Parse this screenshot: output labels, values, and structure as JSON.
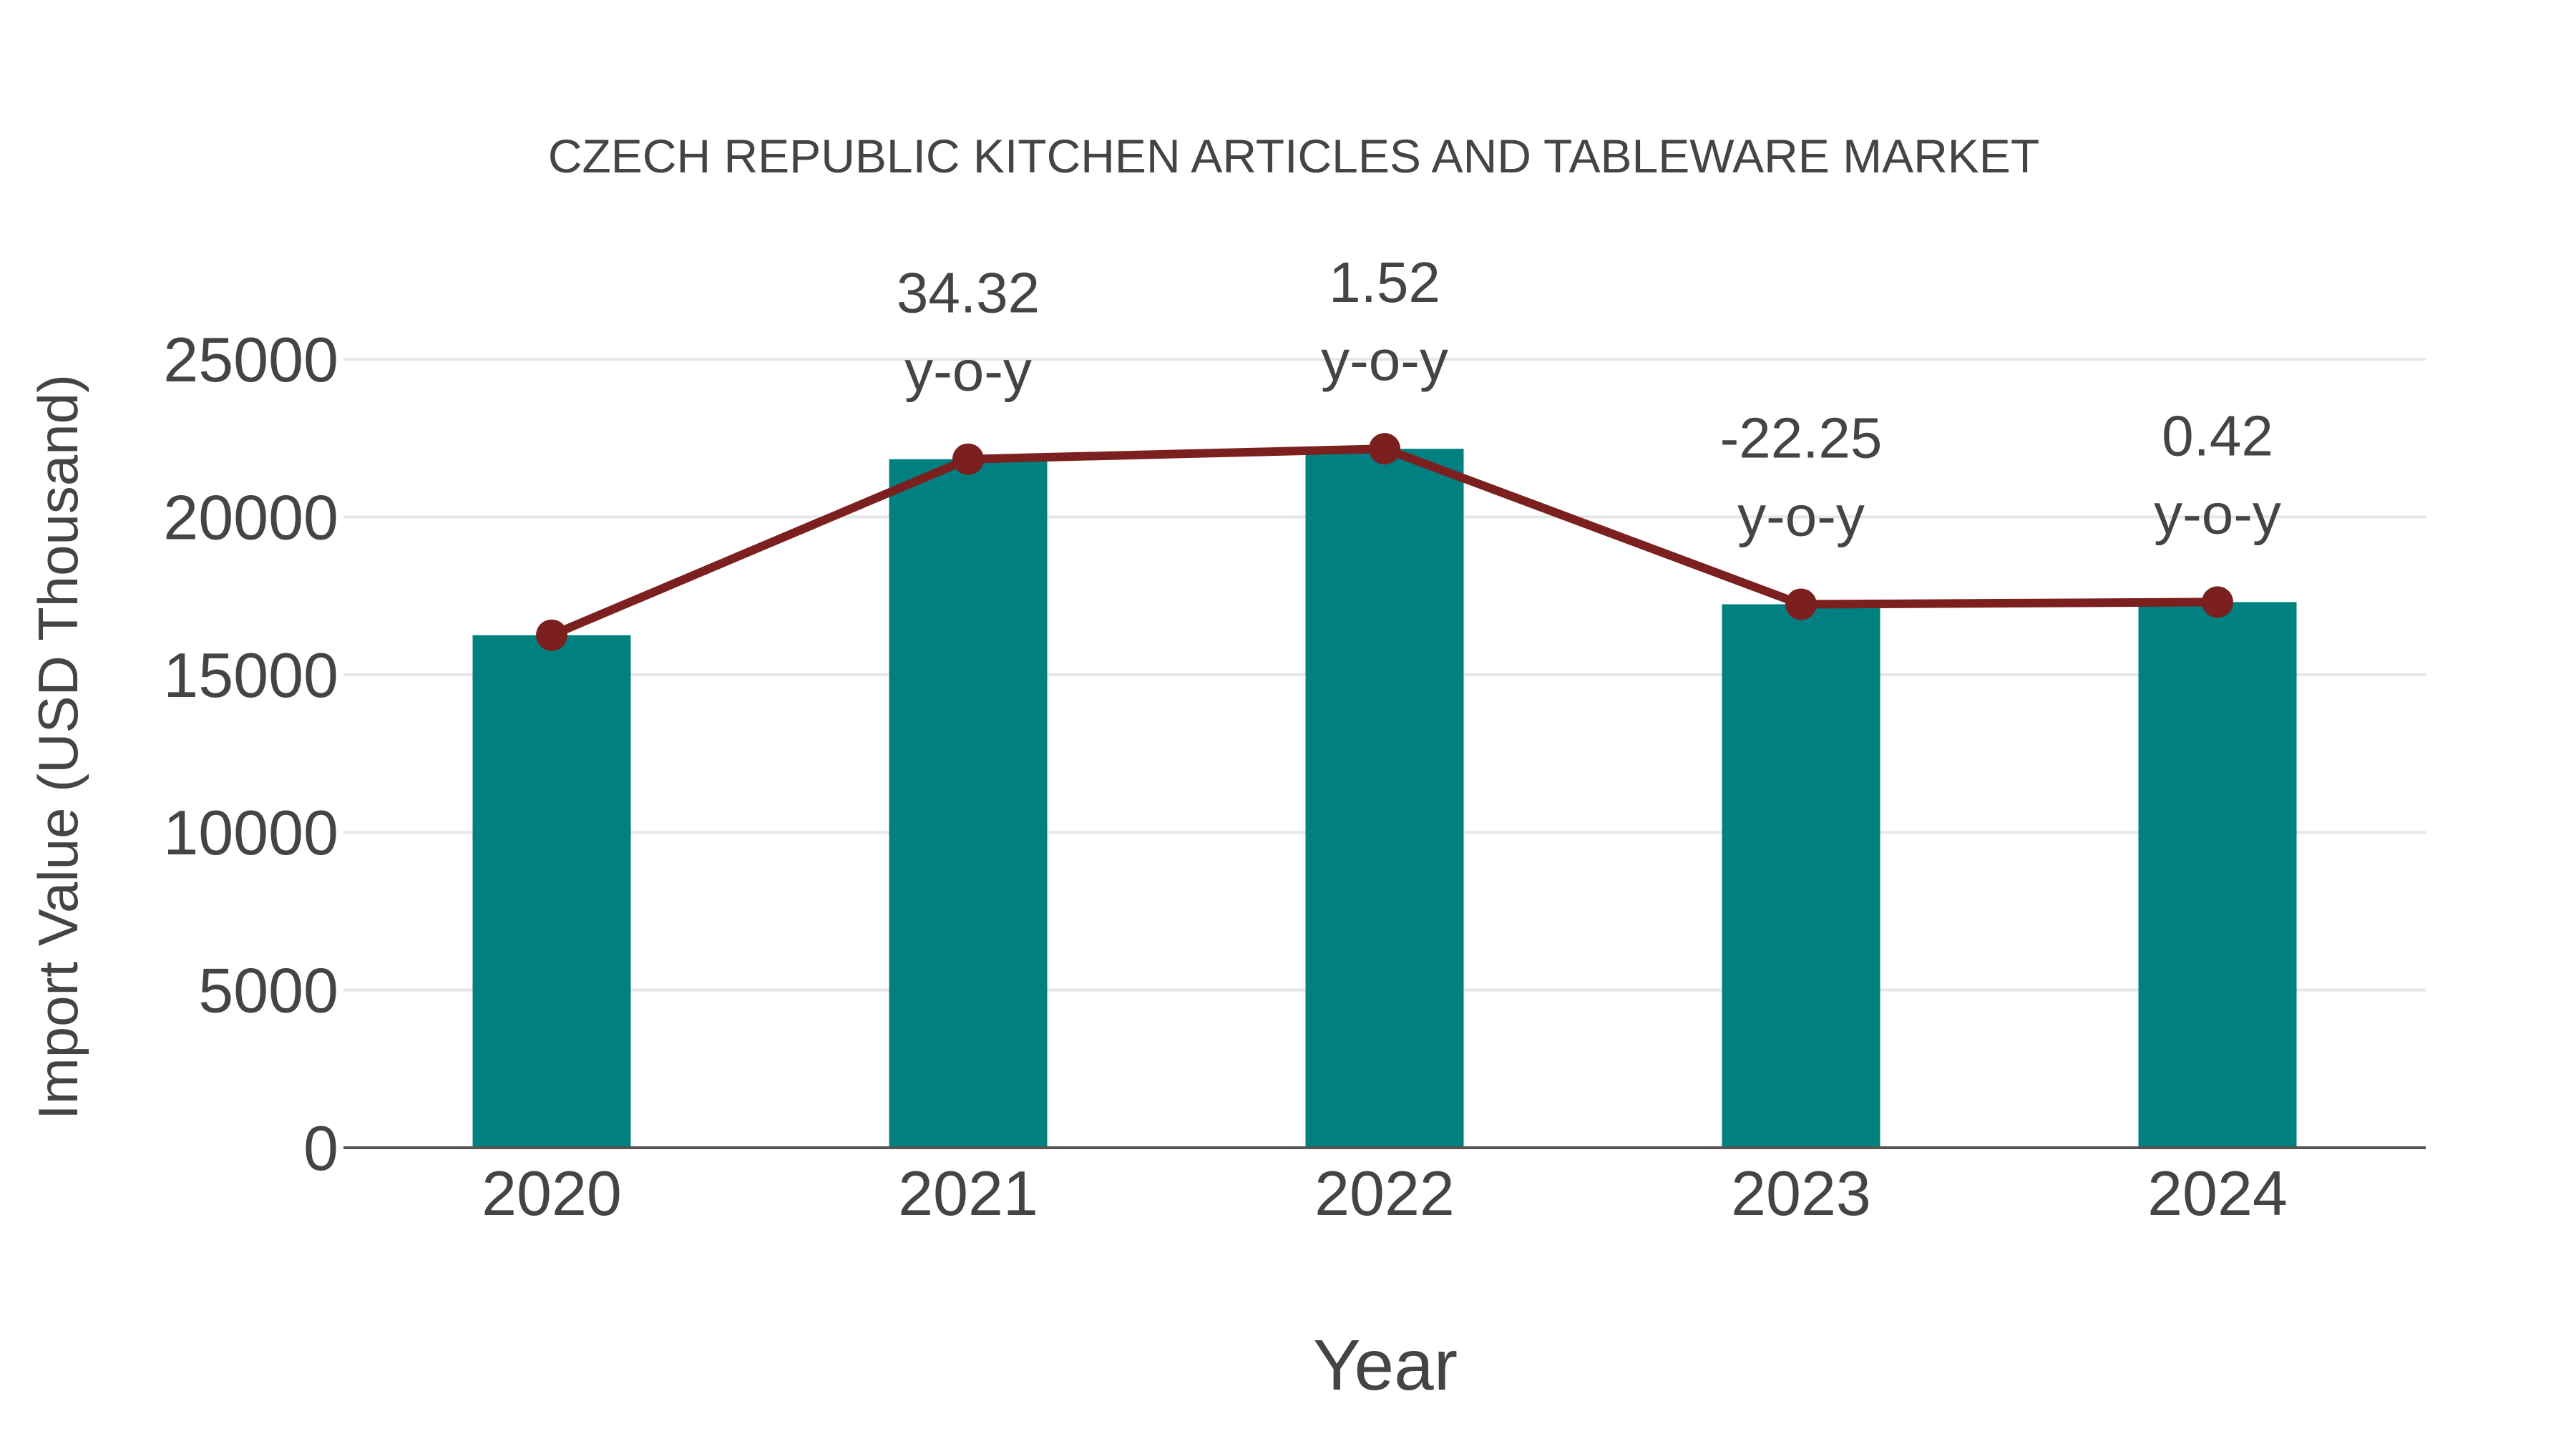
{
  "chart_data": {
    "type": "bar",
    "title": "CZECH REPUBLIC KITCHEN ARTICLES AND TABLEWARE MARKET",
    "xlabel": "Year",
    "ylabel": "Import Value (USD Thousand)",
    "categories": [
      "2020",
      "2021",
      "2022",
      "2023",
      "2024"
    ],
    "series": [
      {
        "name": "Import Value",
        "type": "bar",
        "color": "#008080",
        "values": [
          16250,
          21830,
          22160,
          17230,
          17300
        ]
      },
      {
        "name": "Import Value (line)",
        "type": "line",
        "color": "#7B1F1F",
        "values": [
          16250,
          21830,
          22160,
          17230,
          17300
        ]
      }
    ],
    "annotations": [
      {
        "category": "2021",
        "value": "34.32",
        "suffix": "y-o-y"
      },
      {
        "category": "2022",
        "value": "1.52",
        "suffix": "y-o-y"
      },
      {
        "category": "2023",
        "value": "-22.25",
        "suffix": "y-o-y"
      },
      {
        "category": "2024",
        "value": "0.42",
        "suffix": "y-o-y"
      }
    ],
    "yticks": [
      0,
      5000,
      10000,
      15000,
      20000,
      25000
    ],
    "ylim": [
      0,
      25000
    ],
    "grid": true,
    "legend": "none"
  },
  "colors": {
    "bar": "#008080",
    "line": "#7B1F1F",
    "text": "#444444",
    "grid": "#e6e6e6",
    "axis": "#555555"
  }
}
